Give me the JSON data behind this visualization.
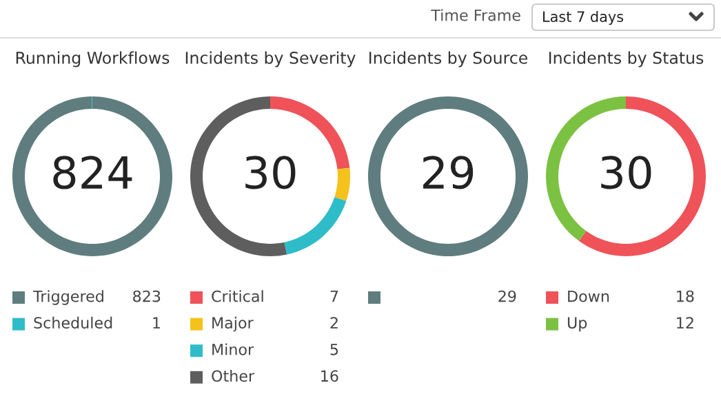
{
  "chart_data": [
    {
      "type": "other",
      "annotations": [
        "Time Frame",
        "Last 7 days"
      ]
    },
    {
      "type": "donut",
      "title": "Running Workflows",
      "annotations": [
        "824"
      ],
      "categories": [
        "Triggered",
        "Scheduled"
      ],
      "values": [
        823,
        1
      ],
      "colors": [
        "#5f7d7f",
        "#2fbcc9"
      ],
      "legend": "bottom",
      "data_labels": true
    },
    {
      "type": "donut",
      "title": "Incidents by Severity",
      "annotations": [
        "30"
      ],
      "categories": [
        "Critical",
        "Major",
        "Minor",
        "Other"
      ],
      "values": [
        7,
        2,
        5,
        16
      ],
      "colors": [
        "#ef5258",
        "#f5c21b",
        "#2fbcc9",
        "#5e5e5e"
      ],
      "legend": "bottom",
      "data_labels": true
    },
    {
      "type": "pie",
      "title": "Incidents by Source",
      "annotations": [
        "29"
      ],
      "categories": [
        null
      ],
      "values": [
        29
      ],
      "colors": [
        "#5f7d7f"
      ],
      "data_labels": true
    },
    {
      "type": "donut",
      "title": "Incidents by Status",
      "annotations": [
        "30"
      ],
      "categories": [
        "Down",
        "Up"
      ],
      "values": [
        18,
        12
      ],
      "colors": [
        "#ef5258",
        "#7bc142"
      ],
      "legend": "bottom",
      "data_labels": true
    }
  ]
}
